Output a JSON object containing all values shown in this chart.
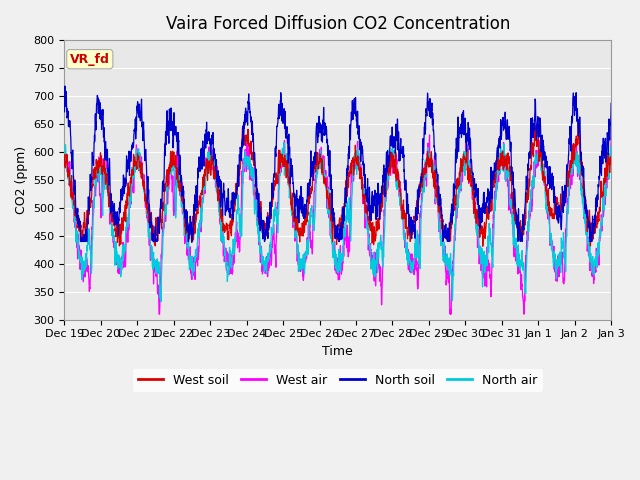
{
  "title": "Vaira Forced Diffusion CO2 Concentration",
  "xlabel": "Time",
  "ylabel": "CO2 (ppm)",
  "ylim": [
    300,
    800
  ],
  "yticks": [
    300,
    350,
    400,
    450,
    500,
    550,
    600,
    650,
    700,
    750,
    800
  ],
  "legend_label": "VR_fd",
  "legend_bbox_facecolor": "#ffffcc",
  "legend_bbox_edgecolor": "#aaaaaa",
  "legend_text_color": "#cc0000",
  "series_labels": [
    "West soil",
    "West air",
    "North soil",
    "North air"
  ],
  "series_colors": [
    "#dd0000",
    "#ff00ff",
    "#0000cc",
    "#00ccdd"
  ],
  "fig_facecolor": "#f0f0f0",
  "plot_bg_color": "#e8e8e8",
  "grid_color": "#ffffff",
  "n_points": 3000,
  "title_fontsize": 12,
  "axis_fontsize": 9,
  "tick_fontsize": 8,
  "legend_fontsize": 9
}
